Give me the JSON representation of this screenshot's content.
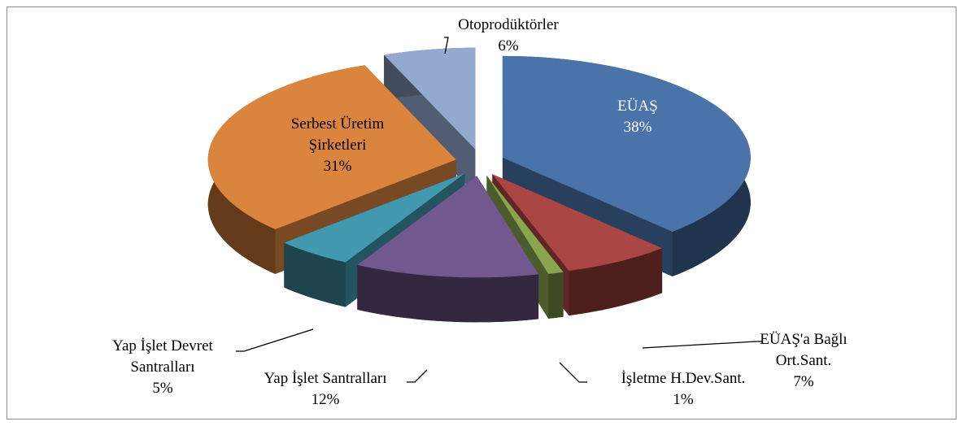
{
  "chart_data": {
    "type": "pie3d",
    "categories": [
      "EÜAŞ",
      "EÜAŞ'a Bağlı Ort.Sant.",
      "İşletme H.Dev.Sant.",
      "Yap İşlet Santralları",
      "Yap İşlet Devret Santralları",
      "Serbest Üretim Şirketleri",
      "Otoprodüktörler"
    ],
    "values": [
      38,
      7,
      1,
      12,
      5,
      31,
      6
    ],
    "value_labels": [
      "38%",
      "7%",
      "1%",
      "12%",
      "5%",
      "31%",
      "6%"
    ],
    "colors": [
      "#4a73aa",
      "#aa4643",
      "#89a54e",
      "#71588f",
      "#4198af",
      "#db843d",
      "#93a9cf"
    ]
  }
}
